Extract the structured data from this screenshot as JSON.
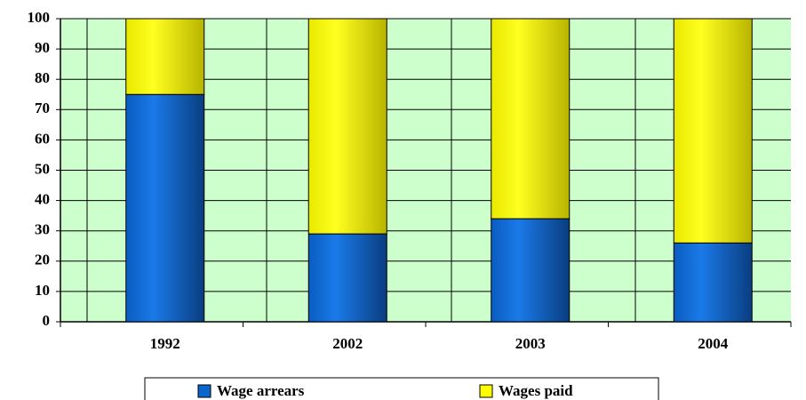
{
  "chart_data": {
    "type": "stacked_bar",
    "categories": [
      "1992",
      "2002",
      "2003",
      "2004"
    ],
    "series": [
      {
        "name": "Wage arrears",
        "color": "#0a66cc",
        "values": [
          75,
          29,
          34,
          26
        ]
      },
      {
        "name": "Wages paid",
        "color": "#ffff00",
        "values": [
          25,
          71,
          66,
          74
        ]
      }
    ],
    "ylim": [
      0,
      100
    ],
    "yticks": [
      0,
      10,
      20,
      30,
      40,
      50,
      60,
      70,
      80,
      90,
      100
    ],
    "grid": true,
    "legend": "bottom"
  }
}
